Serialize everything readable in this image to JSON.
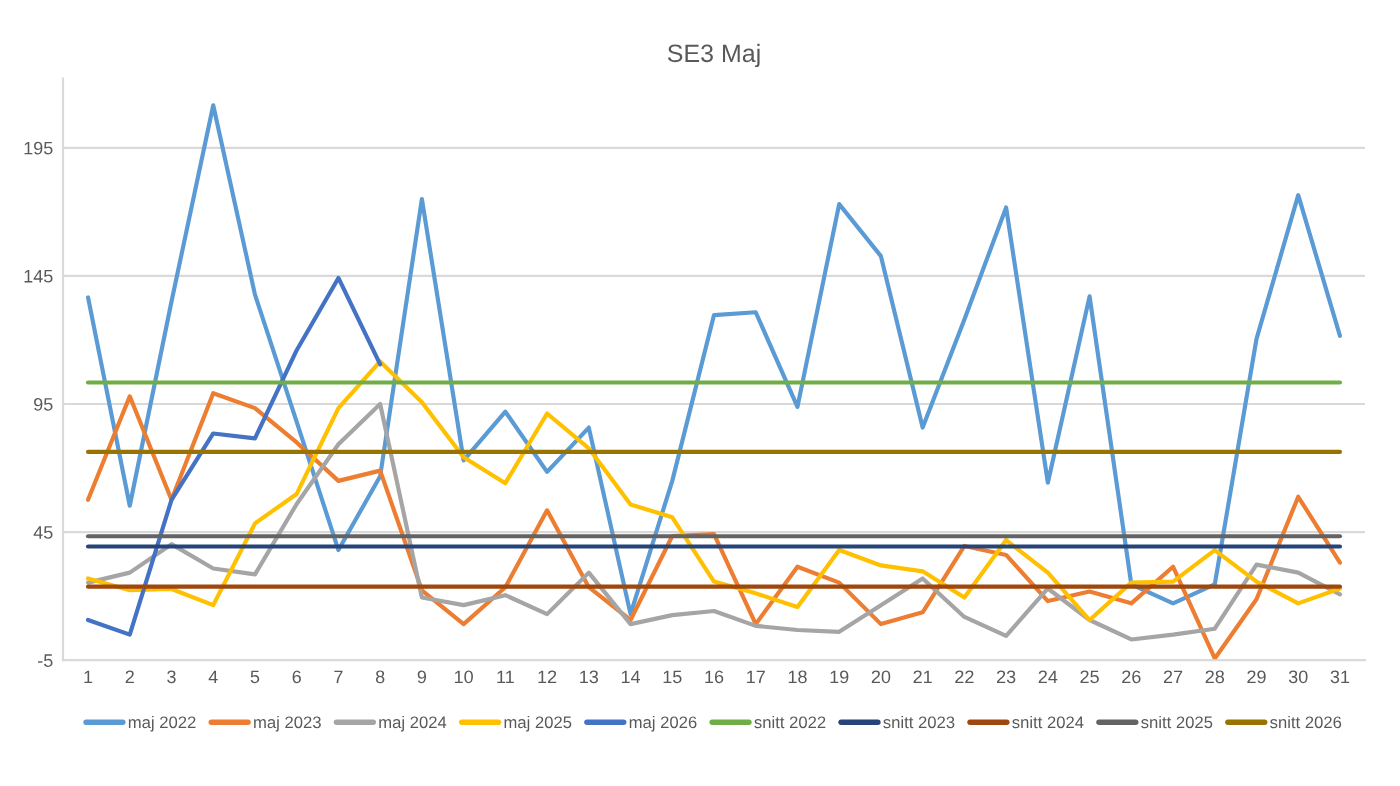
{
  "chart_data": {
    "type": "line",
    "title": "SE3 Maj",
    "categories": [
      "1",
      "2",
      "3",
      "4",
      "5",
      "6",
      "7",
      "8",
      "9",
      "10",
      "11",
      "12",
      "13",
      "14",
      "15",
      "16",
      "17",
      "18",
      "19",
      "20",
      "21",
      "22",
      "23",
      "24",
      "25",
      "26",
      "27",
      "28",
      "29",
      "30",
      "31"
    ],
    "ylim": [
      -5,
      222
    ],
    "yticks": [
      -5,
      45,
      95,
      145,
      195
    ],
    "grid": "y",
    "legend": "bottom",
    "series": [
      {
        "name": "maj 2022",
        "color": "#5b9bd5",
        "values": [
          136.6,
          55.3,
          135,
          211.6,
          137.7,
          88,
          38,
          66.8,
          175,
          73,
          92,
          68.5,
          85.8,
          13,
          65,
          129.7,
          130.8,
          93.9,
          173,
          152.7,
          85.8,
          128,
          171.7,
          64.3,
          137,
          24.6,
          17.2,
          24.6,
          120.4,
          176.5,
          121.6
        ]
      },
      {
        "name": "maj 2023",
        "color": "#ed7d31",
        "values": [
          57.6,
          98,
          57.6,
          99.2,
          93.4,
          80,
          65,
          69,
          22.3,
          9.1,
          23.5,
          53.5,
          23.5,
          10.7,
          43.5,
          44.2,
          9.1,
          31.5,
          25.3,
          9.1,
          13.7,
          39.6,
          36.1,
          18.1,
          21.8,
          17.2,
          31.5,
          -4.3,
          18.8,
          58.8,
          33.1
        ]
      },
      {
        "name": "maj 2024",
        "color": "#a5a5a5",
        "values": [
          25.3,
          29.2,
          40.3,
          30.8,
          28.5,
          56,
          79.3,
          95,
          19.5,
          16.5,
          20.4,
          13,
          29.2,
          9.1,
          12.6,
          14.2,
          8.4,
          6.8,
          6.1,
          16.5,
          26.9,
          11.9,
          4.5,
          23,
          10.7,
          3.1,
          5,
          7.3,
          32.3,
          29.2,
          20.7
        ]
      },
      {
        "name": "maj 2025",
        "color": "#ffc000",
        "values": [
          26.9,
          22.3,
          22.8,
          16.5,
          48.4,
          59.9,
          93.4,
          111.6,
          95.7,
          74.2,
          64.1,
          91.3,
          77.7,
          55.8,
          50.8,
          25.7,
          21.1,
          15.8,
          38,
          32,
          29.7,
          19.5,
          41.9,
          29.2,
          10.7,
          25.3,
          25.7,
          38,
          25.7,
          17.2,
          23
        ]
      },
      {
        "name": "maj 2026",
        "color": "#4472c4",
        "values": [
          10.7,
          5,
          57.6,
          83.5,
          81.6,
          116,
          144.2,
          110.5,
          null,
          null,
          null,
          null,
          null,
          null,
          null,
          null,
          null,
          null,
          null,
          null,
          null,
          null,
          null,
          null,
          null,
          null,
          null,
          null,
          null,
          null,
          null
        ]
      },
      {
        "name": "snitt 2022",
        "color": "#70ad47",
        "values": [
          103.4,
          103.4,
          103.4,
          103.4,
          103.4,
          103.4,
          103.4,
          103.4,
          103.4,
          103.4,
          103.4,
          103.4,
          103.4,
          103.4,
          103.4,
          103.4,
          103.4,
          103.4,
          103.4,
          103.4,
          103.4,
          103.4,
          103.4,
          103.4,
          103.4,
          103.4,
          103.4,
          103.4,
          103.4,
          103.4,
          103.4
        ]
      },
      {
        "name": "snitt 2023",
        "color": "#264478",
        "values": [
          39.4,
          39.4,
          39.4,
          39.4,
          39.4,
          39.4,
          39.4,
          39.4,
          39.4,
          39.4,
          39.4,
          39.4,
          39.4,
          39.4,
          39.4,
          39.4,
          39.4,
          39.4,
          39.4,
          39.4,
          39.4,
          39.4,
          39.4,
          39.4,
          39.4,
          39.4,
          39.4,
          39.4,
          39.4,
          39.4,
          39.4
        ]
      },
      {
        "name": "snitt 2024",
        "color": "#9e480e",
        "values": [
          23.7,
          23.7,
          23.7,
          23.7,
          23.7,
          23.7,
          23.7,
          23.7,
          23.7,
          23.7,
          23.7,
          23.7,
          23.7,
          23.7,
          23.7,
          23.7,
          23.7,
          23.7,
          23.7,
          23.7,
          23.7,
          23.7,
          23.7,
          23.7,
          23.7,
          23.7,
          23.7,
          23.7,
          23.7,
          23.7,
          23.7
        ]
      },
      {
        "name": "snitt 2025",
        "color": "#636363",
        "values": [
          43.4,
          43.4,
          43.4,
          43.4,
          43.4,
          43.4,
          43.4,
          43.4,
          43.4,
          43.4,
          43.4,
          43.4,
          43.4,
          43.4,
          43.4,
          43.4,
          43.4,
          43.4,
          43.4,
          43.4,
          43.4,
          43.4,
          43.4,
          43.4,
          43.4,
          43.4,
          43.4,
          43.4,
          43.4,
          43.4,
          43.4
        ]
      },
      {
        "name": "snitt 2026",
        "color": "#997300",
        "values": [
          76.3,
          76.3,
          76.3,
          76.3,
          76.3,
          76.3,
          76.3,
          76.3,
          76.3,
          76.3,
          76.3,
          76.3,
          76.3,
          76.3,
          76.3,
          76.3,
          76.3,
          76.3,
          76.3,
          76.3,
          76.3,
          76.3,
          76.3,
          76.3,
          76.3,
          76.3,
          76.3,
          76.3,
          76.3,
          76.3,
          76.3
        ]
      }
    ]
  }
}
